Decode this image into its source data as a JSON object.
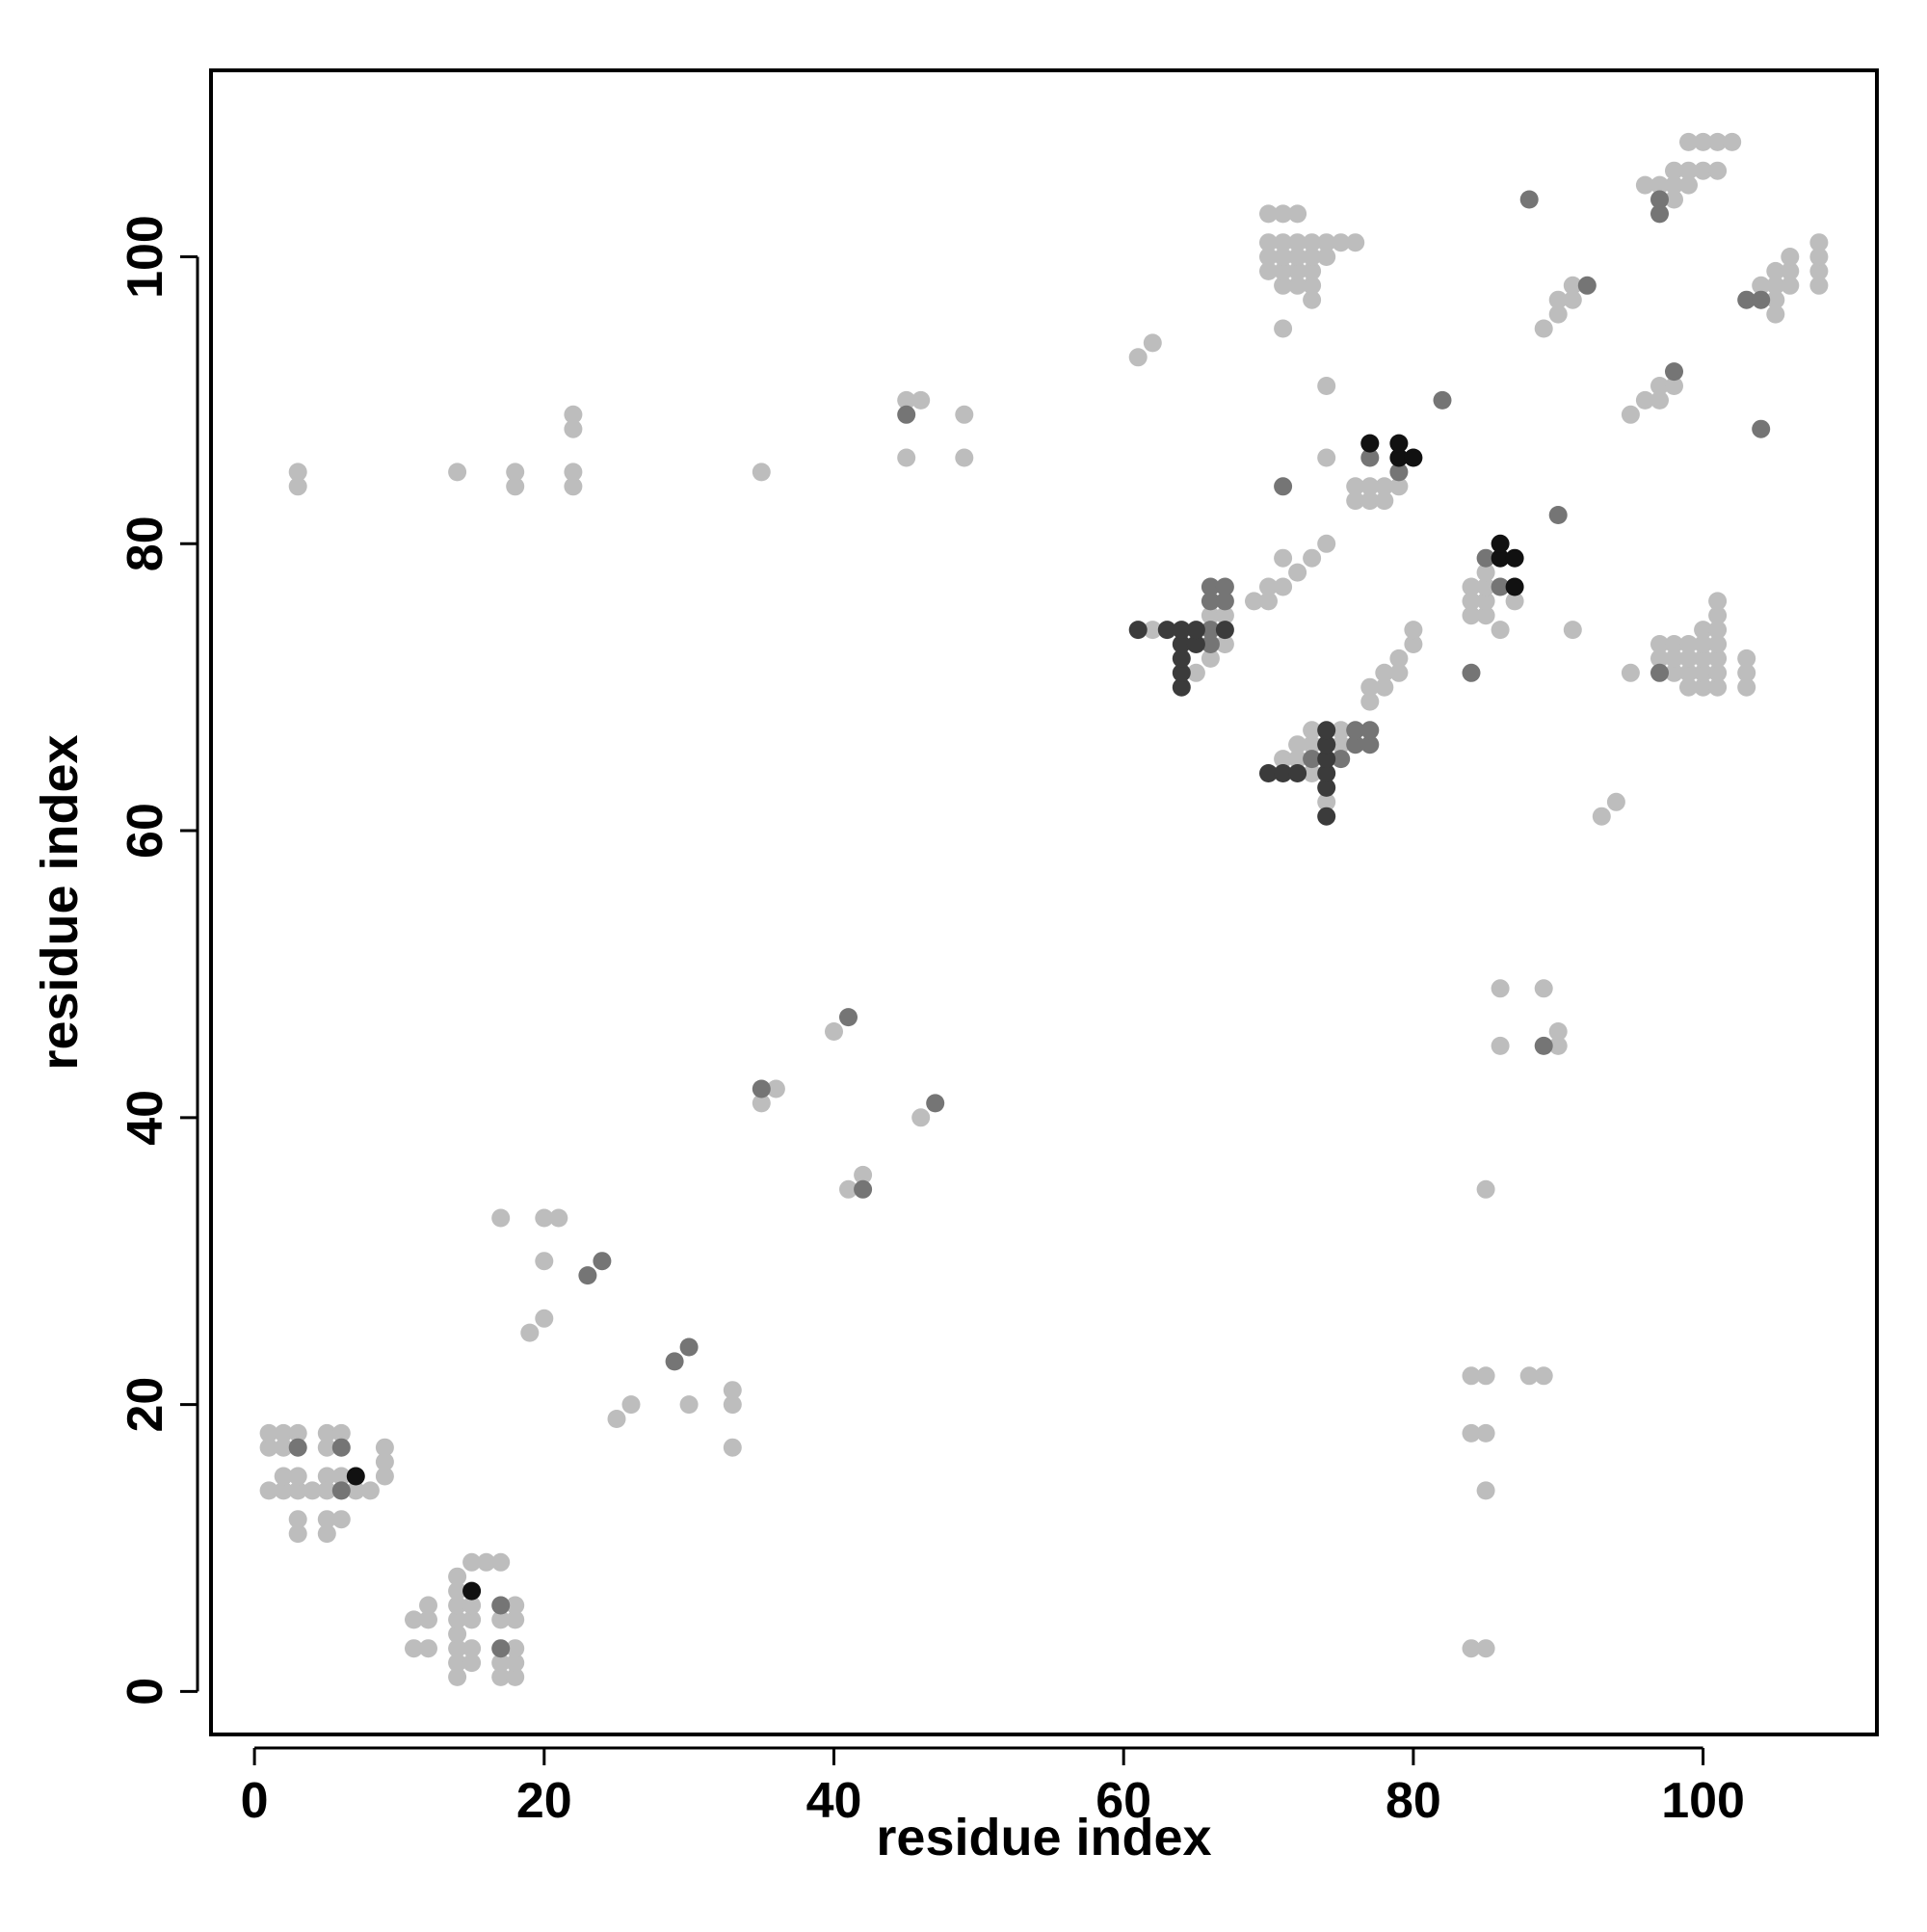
{
  "chart_data": {
    "type": "scatter",
    "title": "",
    "xlabel": "residue index",
    "ylabel": "residue index",
    "xlim": [
      -3,
      112
    ],
    "ylim": [
      -3,
      113
    ],
    "xticks": [
      0,
      20,
      40,
      60,
      80,
      100
    ],
    "yticks": [
      0,
      20,
      40,
      60,
      80,
      100
    ],
    "xtick_labels": [
      "0",
      "20",
      "40",
      "60",
      "80",
      "100"
    ],
    "ytick_labels": [
      "0",
      "20",
      "40",
      "60",
      "80",
      "100"
    ],
    "grid": false,
    "legend": "none",
    "colors": {
      "light": "#bdbdbd",
      "medium": "#757575",
      "dark": "#3b3b3b",
      "black": "#111111"
    },
    "series": [
      {
        "shade": "light",
        "points": [
          [
            1,
            17
          ],
          [
            1,
            18
          ],
          [
            2,
            17
          ],
          [
            2,
            18
          ],
          [
            3,
            18
          ],
          [
            3,
            11
          ],
          [
            3,
            12
          ],
          [
            1,
            14
          ],
          [
            2,
            14
          ],
          [
            3,
            14
          ],
          [
            4,
            14
          ],
          [
            2,
            15
          ],
          [
            3,
            15
          ],
          [
            5,
            17
          ],
          [
            5,
            18
          ],
          [
            6,
            18
          ],
          [
            5,
            15
          ],
          [
            6,
            15
          ],
          [
            5,
            14
          ],
          [
            6,
            14
          ],
          [
            7,
            14
          ],
          [
            8,
            14
          ],
          [
            5,
            12
          ],
          [
            6,
            12
          ],
          [
            5,
            11
          ],
          [
            9,
            15
          ],
          [
            9,
            16
          ],
          [
            9,
            17
          ],
          [
            11,
            5
          ],
          [
            11,
            3
          ],
          [
            12,
            3
          ],
          [
            12,
            5
          ],
          [
            12,
            6
          ],
          [
            14,
            1
          ],
          [
            14,
            2
          ],
          [
            14,
            3
          ],
          [
            14,
            4
          ],
          [
            14,
            5
          ],
          [
            14,
            6
          ],
          [
            14,
            7
          ],
          [
            14,
            8
          ],
          [
            15,
            2
          ],
          [
            15,
            3
          ],
          [
            15,
            5
          ],
          [
            15,
            6
          ],
          [
            15,
            9
          ],
          [
            16,
            9
          ],
          [
            17,
            9
          ],
          [
            17,
            1
          ],
          [
            17,
            2
          ],
          [
            17,
            5
          ],
          [
            18,
            1
          ],
          [
            18,
            2
          ],
          [
            18,
            3
          ],
          [
            18,
            5
          ],
          [
            18,
            6
          ],
          [
            17,
            33
          ],
          [
            19,
            25
          ],
          [
            20,
            26
          ],
          [
            20,
            30
          ],
          [
            20,
            33
          ],
          [
            21,
            33
          ],
          [
            25,
            19
          ],
          [
            26,
            20
          ],
          [
            30,
            20
          ],
          [
            33,
            17
          ],
          [
            33,
            20
          ],
          [
            33,
            21
          ],
          [
            35,
            41
          ],
          [
            36,
            42
          ],
          [
            40,
            46
          ],
          [
            41,
            35
          ],
          [
            42,
            36
          ],
          [
            46,
            40
          ],
          [
            3,
            84
          ],
          [
            3,
            85
          ],
          [
            14,
            85
          ],
          [
            18,
            84
          ],
          [
            18,
            85
          ],
          [
            22,
            84
          ],
          [
            22,
            85
          ],
          [
            22,
            88
          ],
          [
            22,
            89
          ],
          [
            35,
            85
          ],
          [
            45,
            86
          ],
          [
            45,
            90
          ],
          [
            46,
            90
          ],
          [
            49,
            86
          ],
          [
            49,
            89
          ],
          [
            61,
            93
          ],
          [
            62,
            94
          ],
          [
            62,
            74
          ],
          [
            65,
            71
          ],
          [
            66,
            72
          ],
          [
            66,
            75
          ],
          [
            67,
            73
          ],
          [
            67,
            75
          ],
          [
            69,
            76
          ],
          [
            70,
            76
          ],
          [
            70,
            77
          ],
          [
            71,
            77
          ],
          [
            71,
            79
          ],
          [
            72,
            78
          ],
          [
            73,
            79
          ],
          [
            74,
            80
          ],
          [
            71,
            65
          ],
          [
            72,
            65
          ],
          [
            72,
            66
          ],
          [
            73,
            64
          ],
          [
            73,
            66
          ],
          [
            73,
            67
          ],
          [
            74,
            62
          ],
          [
            75,
            66
          ],
          [
            75,
            67
          ],
          [
            77,
            69
          ],
          [
            77,
            70
          ],
          [
            78,
            70
          ],
          [
            78,
            71
          ],
          [
            79,
            72
          ],
          [
            80,
            73
          ],
          [
            80,
            74
          ],
          [
            79,
            71
          ],
          [
            74,
            86
          ],
          [
            74,
            91
          ],
          [
            76,
            83
          ],
          [
            76,
            84
          ],
          [
            77,
            83
          ],
          [
            77,
            84
          ],
          [
            78,
            83
          ],
          [
            78,
            84
          ],
          [
            79,
            84
          ],
          [
            77,
            87
          ],
          [
            70,
            99
          ],
          [
            70,
            100
          ],
          [
            70,
            101
          ],
          [
            70,
            103
          ],
          [
            71,
            98
          ],
          [
            71,
            99
          ],
          [
            71,
            100
          ],
          [
            71,
            101
          ],
          [
            71,
            103
          ],
          [
            72,
            98
          ],
          [
            72,
            99
          ],
          [
            72,
            100
          ],
          [
            72,
            101
          ],
          [
            72,
            103
          ],
          [
            73,
            97
          ],
          [
            73,
            98
          ],
          [
            73,
            99
          ],
          [
            73,
            100
          ],
          [
            73,
            101
          ],
          [
            74,
            100
          ],
          [
            74,
            101
          ],
          [
            75,
            101
          ],
          [
            76,
            101
          ],
          [
            71,
            95
          ],
          [
            84,
            75
          ],
          [
            84,
            76
          ],
          [
            84,
            77
          ],
          [
            85,
            75
          ],
          [
            85,
            76
          ],
          [
            85,
            77
          ],
          [
            85,
            78
          ],
          [
            86,
            74
          ],
          [
            87,
            76
          ],
          [
            91,
            74
          ],
          [
            93,
            61
          ],
          [
            94,
            62
          ],
          [
            95,
            71
          ],
          [
            97,
            72
          ],
          [
            97,
            73
          ],
          [
            98,
            71
          ],
          [
            98,
            72
          ],
          [
            98,
            73
          ],
          [
            99,
            70
          ],
          [
            99,
            71
          ],
          [
            99,
            72
          ],
          [
            99,
            73
          ],
          [
            100,
            70
          ],
          [
            100,
            71
          ],
          [
            100,
            72
          ],
          [
            100,
            73
          ],
          [
            100,
            74
          ],
          [
            101,
            70
          ],
          [
            101,
            71
          ],
          [
            101,
            72
          ],
          [
            101,
            73
          ],
          [
            101,
            74
          ],
          [
            101,
            75
          ],
          [
            101,
            76
          ],
          [
            103,
            70
          ],
          [
            103,
            71
          ],
          [
            103,
            72
          ],
          [
            95,
            89
          ],
          [
            96,
            90
          ],
          [
            97,
            90
          ],
          [
            97,
            91
          ],
          [
            98,
            91
          ],
          [
            89,
            95
          ],
          [
            90,
            96
          ],
          [
            90,
            97
          ],
          [
            91,
            97
          ],
          [
            91,
            98
          ],
          [
            96,
            105
          ],
          [
            97,
            105
          ],
          [
            98,
            104
          ],
          [
            98,
            105
          ],
          [
            98,
            106
          ],
          [
            99,
            105
          ],
          [
            99,
            106
          ],
          [
            99,
            108
          ],
          [
            100,
            106
          ],
          [
            100,
            108
          ],
          [
            101,
            106
          ],
          [
            101,
            108
          ],
          [
            102,
            108
          ],
          [
            104,
            97
          ],
          [
            104,
            98
          ],
          [
            105,
            96
          ],
          [
            105,
            97
          ],
          [
            105,
            98
          ],
          [
            105,
            99
          ],
          [
            106,
            98
          ],
          [
            106,
            99
          ],
          [
            106,
            100
          ],
          [
            108,
            98
          ],
          [
            108,
            99
          ],
          [
            108,
            100
          ],
          [
            108,
            101
          ],
          [
            84,
            3
          ],
          [
            85,
            3
          ],
          [
            84,
            18
          ],
          [
            85,
            18
          ],
          [
            85,
            14
          ],
          [
            84,
            22
          ],
          [
            85,
            22
          ],
          [
            88,
            22
          ],
          [
            89,
            22
          ],
          [
            85,
            35
          ],
          [
            86,
            45
          ],
          [
            86,
            49
          ],
          [
            89,
            49
          ],
          [
            90,
            45
          ],
          [
            90,
            46
          ]
        ]
      },
      {
        "shade": "medium",
        "points": [
          [
            3,
            17
          ],
          [
            6,
            17
          ],
          [
            6,
            14
          ],
          [
            17,
            6
          ],
          [
            17,
            3
          ],
          [
            23,
            29
          ],
          [
            24,
            30
          ],
          [
            29,
            23
          ],
          [
            30,
            24
          ],
          [
            35,
            42
          ],
          [
            42,
            35
          ],
          [
            41,
            47
          ],
          [
            47,
            41
          ],
          [
            45,
            89
          ],
          [
            82,
            90
          ],
          [
            66,
            73
          ],
          [
            66,
            74
          ],
          [
            66,
            76
          ],
          [
            66,
            77
          ],
          [
            67,
            76
          ],
          [
            67,
            77
          ],
          [
            71,
            84
          ],
          [
            73,
            65
          ],
          [
            74,
            66
          ],
          [
            75,
            65
          ],
          [
            76,
            66
          ],
          [
            76,
            67
          ],
          [
            77,
            66
          ],
          [
            77,
            67
          ],
          [
            77,
            86
          ],
          [
            79,
            85
          ],
          [
            84,
            71
          ],
          [
            85,
            79
          ],
          [
            86,
            77
          ],
          [
            88,
            104
          ],
          [
            90,
            82
          ],
          [
            92,
            98
          ],
          [
            97,
            71
          ],
          [
            97,
            103
          ],
          [
            97,
            104
          ],
          [
            98,
            92
          ],
          [
            103,
            97
          ],
          [
            104,
            97
          ],
          [
            104,
            88
          ],
          [
            89,
            45
          ]
        ]
      },
      {
        "shade": "dark",
        "points": [
          [
            61,
            74
          ],
          [
            63,
            74
          ],
          [
            64,
            70
          ],
          [
            64,
            71
          ],
          [
            64,
            72
          ],
          [
            64,
            73
          ],
          [
            64,
            74
          ],
          [
            65,
            73
          ],
          [
            65,
            74
          ],
          [
            67,
            74
          ],
          [
            70,
            64
          ],
          [
            71,
            64
          ],
          [
            72,
            64
          ],
          [
            74,
            61
          ],
          [
            74,
            63
          ],
          [
            74,
            64
          ],
          [
            74,
            65
          ],
          [
            74,
            66
          ],
          [
            74,
            67
          ]
        ]
      },
      {
        "shade": "black",
        "points": [
          [
            7,
            15
          ],
          [
            15,
            7
          ],
          [
            77,
            87
          ],
          [
            79,
            86
          ],
          [
            79,
            87
          ],
          [
            80,
            86
          ],
          [
            86,
            79
          ],
          [
            86,
            80
          ],
          [
            87,
            77
          ],
          [
            87,
            79
          ]
        ]
      }
    ]
  }
}
